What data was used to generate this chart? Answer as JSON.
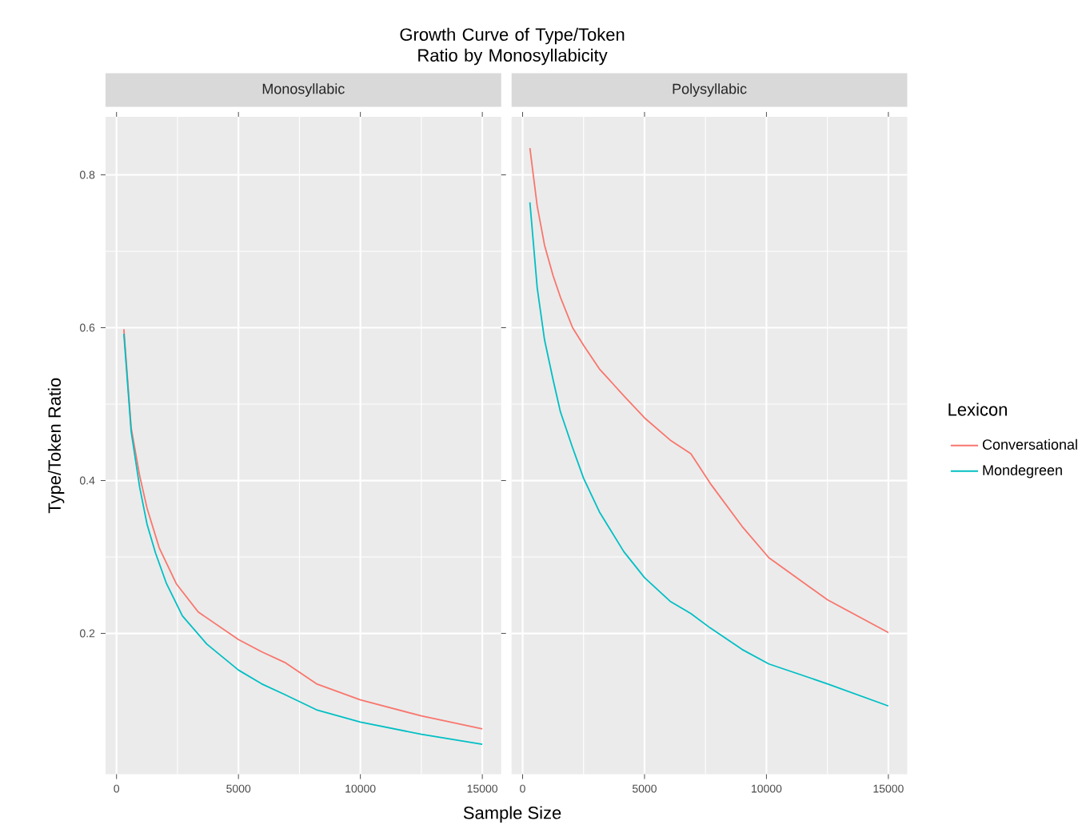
{
  "chart_data": [
    {
      "type": "line",
      "title": "Growth Curve of Type/Token Ratio by Monosyllabicity",
      "subtitle": "Monosyllabic",
      "xlabel": "Sample Size",
      "ylabel": "Type/Token Ratio",
      "xlim": [
        -452,
        15774
      ],
      "ylim": [
        0.0157,
        0.876
      ],
      "xticks": [
        0,
        5000,
        10000,
        15000
      ],
      "yticks": [
        0.2,
        0.4,
        0.6,
        0.8
      ],
      "grid": true,
      "line_style": "solid",
      "series": [
        {
          "color": "#f8766d",
          "x": [
            300,
            600,
            950,
            1250,
            1750,
            2450,
            3350,
            5000,
            5950,
            6900,
            8200,
            10000,
            12500,
            15000
          ],
          "values": [
            0.598,
            0.469,
            0.406,
            0.364,
            0.312,
            0.265,
            0.228,
            0.192,
            0.176,
            0.162,
            0.134,
            0.113,
            0.092,
            0.075
          ]
        },
        {
          "color": "#00bfc4",
          "x": [
            300,
            600,
            950,
            1250,
            1600,
            2050,
            2700,
            3700,
            5000,
            5950,
            6900,
            8200,
            10000,
            12500,
            15000
          ],
          "values": [
            0.592,
            0.464,
            0.391,
            0.343,
            0.305,
            0.265,
            0.223,
            0.186,
            0.152,
            0.134,
            0.12,
            0.1,
            0.084,
            0.068,
            0.055
          ]
        }
      ]
    },
    {
      "type": "line",
      "subtitle": "Polysyllabic",
      "legend_title": "Lexicon",
      "legend": "right",
      "tick_labels": "x",
      "xlim": [
        -452,
        15774
      ],
      "ylim": [
        0.0157,
        0.876
      ],
      "xticks": [
        0,
        5000,
        10000,
        15000
      ],
      "yticks": [
        0.2,
        0.4,
        0.6,
        0.8
      ],
      "grid": true,
      "line_style": "solid",
      "series": [
        {
          "name": "Conversational",
          "color": "#f8766d",
          "x": [
            300,
            600,
            900,
            1250,
            1550,
            2050,
            2500,
            3150,
            4150,
            5000,
            6050,
            6900,
            7700,
            9000,
            10100,
            12500,
            15000
          ],
          "values": [
            0.835,
            0.759,
            0.708,
            0.668,
            0.64,
            0.6,
            0.577,
            0.546,
            0.511,
            0.482,
            0.453,
            0.435,
            0.396,
            0.34,
            0.299,
            0.244,
            0.201
          ]
        },
        {
          "name": "Mondegreen",
          "color": "#00bfc4",
          "x": [
            300,
            600,
            900,
            1250,
            1550,
            2050,
            2500,
            3150,
            4150,
            5000,
            6050,
            6900,
            7700,
            9000,
            10100,
            12500,
            15000
          ],
          "values": [
            0.764,
            0.652,
            0.584,
            0.532,
            0.49,
            0.443,
            0.403,
            0.359,
            0.307,
            0.273,
            0.242,
            0.226,
            0.207,
            0.179,
            0.16,
            0.134,
            0.105
          ]
        }
      ]
    }
  ]
}
